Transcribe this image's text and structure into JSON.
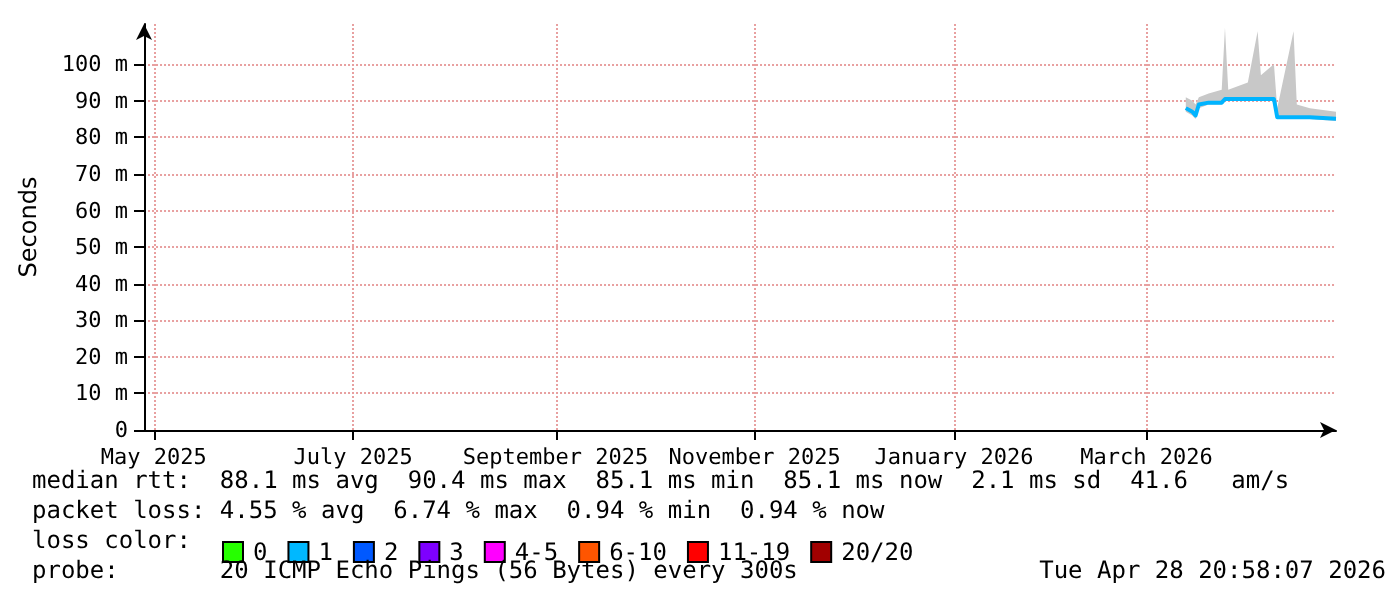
{
  "chart_data": {
    "type": "line",
    "ylabel": "Seconds",
    "x": [
      "2026-03-13",
      "2026-03-15",
      "2026-03-16",
      "2026-03-17",
      "2026-03-20",
      "2026-03-24",
      "2026-03-25",
      "2026-03-26",
      "2026-04-01",
      "2026-04-04",
      "2026-04-05",
      "2026-04-09",
      "2026-04-10",
      "2026-04-15",
      "2026-04-16",
      "2026-04-20",
      "2026-04-28"
    ],
    "series": [
      {
        "color": "#00b4ff",
        "values": [
          88,
          87,
          86,
          89,
          89.5,
          89.5,
          90.5,
          90.5,
          90.5,
          90.5,
          90.5,
          90.5,
          85.5,
          85.5,
          85.5,
          85.5,
          85.1
        ],
        "upper": [
          91,
          90,
          89,
          91,
          92,
          93,
          110,
          93,
          95,
          109,
          97,
          100,
          88,
          109,
          89,
          88,
          87
        ],
        "lower": [
          87,
          86,
          85,
          88,
          89,
          89,
          90,
          90,
          90,
          90,
          90,
          90,
          85,
          85,
          85,
          85,
          84.5
        ]
      },
      {
        "name": "0",
        "color": "#26ff00",
        "values": [
          null,
          null,
          null,
          null,
          null,
          null,
          null,
          null,
          null,
          null,
          null,
          null,
          null,
          null,
          null,
          null,
          null
        ]
      },
      {
        "name": "1",
        "color": "#00b8ff",
        "values": [
          null,
          null,
          null,
          null,
          null,
          null,
          null,
          null,
          null,
          null,
          null,
          null,
          null,
          null,
          null,
          null,
          null
        ]
      },
      {
        "name": "2",
        "color": "#0059ff",
        "values": [
          null,
          null,
          null,
          null,
          null,
          null,
          null,
          null,
          null,
          null,
          null,
          null,
          null,
          null,
          null,
          null,
          null
        ]
      },
      {
        "name": "3",
        "color": "#7e00ff",
        "values": [
          null,
          null,
          null,
          null,
          null,
          null,
          null,
          null,
          null,
          null,
          null,
          null,
          null,
          null,
          null,
          null,
          null
        ]
      },
      {
        "name": "4-5",
        "color": "#ff00ff",
        "values": [
          null,
          null,
          null,
          null,
          null,
          null,
          null,
          null,
          null,
          null,
          null,
          null,
          null,
          null,
          null,
          null,
          null
        ]
      },
      {
        "name": "6-10",
        "color": "#ff5500",
        "values": [
          null,
          null,
          null,
          null,
          null,
          null,
          null,
          null,
          null,
          null,
          null,
          null,
          null,
          null,
          null,
          null,
          null
        ]
      },
      {
        "name": "11-19",
        "color": "#ff0000",
        "values": [
          null,
          null,
          null,
          null,
          null,
          null,
          null,
          null,
          null,
          null,
          null,
          null,
          null,
          null,
          null,
          null,
          null
        ]
      },
      {
        "name": "20/20",
        "color": "#a10000",
        "values": [
          null,
          null,
          null,
          null,
          null,
          null,
          null,
          null,
          null,
          null,
          null,
          null,
          null,
          null,
          null,
          null,
          null
        ]
      }
    ],
    "xlim": [
      "2025-04-28",
      "2026-04-28"
    ],
    "xticks": [
      {
        "value": "2025-05-01",
        "label": "May 2025"
      },
      {
        "value": "2025-07-01",
        "label": "July 2025"
      },
      {
        "value": "2025-09-01",
        "label": "September 2025"
      },
      {
        "value": "2025-11-01",
        "label": "November 2025"
      },
      {
        "value": "2026-01-01",
        "label": "January 2026"
      },
      {
        "value": "2026-03-01",
        "label": "March 2026"
      }
    ],
    "ylim": [
      0,
      111
    ],
    "yticks": [
      0,
      {
        "value": 10,
        "label": "10 m"
      },
      {
        "value": 20,
        "label": "20 m"
      },
      {
        "value": 30,
        "label": "30 m"
      },
      {
        "value": 40,
        "label": "40 m"
      },
      {
        "value": 50,
        "label": "50 m"
      },
      {
        "value": 60,
        "label": "60 m"
      },
      {
        "value": 70,
        "label": "70 m"
      },
      {
        "value": 80,
        "label": "80 m"
      },
      {
        "value": 90,
        "label": "90 m"
      },
      {
        "value": 100,
        "label": "100 m"
      }
    ],
    "grid": true,
    "legend": "bottom",
    "marker": "none",
    "line_style": "solid",
    "annotations": [
      "median rtt:  88.1 ms avg  90.4 ms max  85.1 ms min  85.1 ms now  2.1 ms sd  41.6   am/s",
      "packet loss: 4.55 % avg  6.74 % max  0.94 % min  0.94 % now",
      "loss color:",
      "probe:       20 ICMP Echo Pings (56 Bytes) every 300s",
      "Tue Apr 28 20:58:07 2026"
    ]
  }
}
